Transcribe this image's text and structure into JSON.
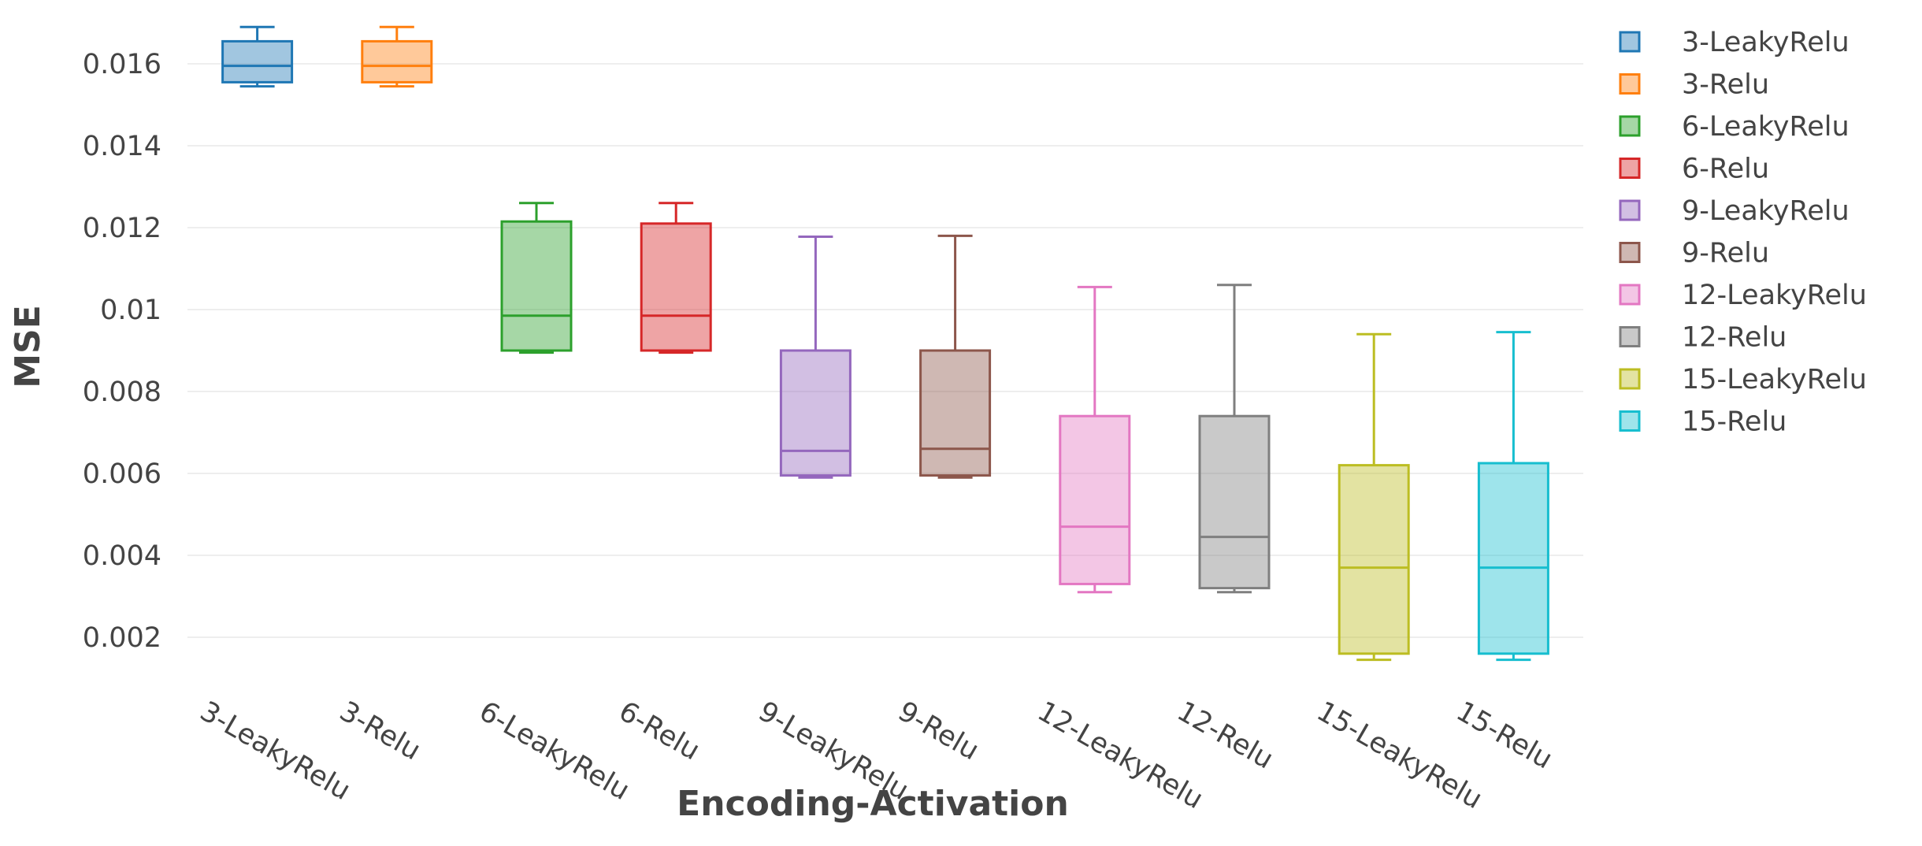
{
  "chart_data": {
    "type": "box",
    "xlabel": "Encoding-Activation",
    "ylabel": "MSE",
    "ylim": [
      0.0005,
      0.0175
    ],
    "yticks": [
      0.002,
      0.004,
      0.006,
      0.008,
      0.01,
      0.012,
      0.014,
      0.016
    ],
    "ytick_labels": [
      "0.002",
      "0.004",
      "0.006",
      "0.008",
      "0.01",
      "0.012",
      "0.014",
      "0.016"
    ],
    "grid": "horizontal",
    "legend_position": "right",
    "series": [
      {
        "name": "3-LeakyRelu",
        "color": "#1f77b4",
        "min": 0.01545,
        "q1": 0.01555,
        "median": 0.01595,
        "q3": 0.01655,
        "max": 0.0169
      },
      {
        "name": "3-Relu",
        "color": "#ff7f0e",
        "min": 0.01545,
        "q1": 0.01555,
        "median": 0.01595,
        "q3": 0.01655,
        "max": 0.0169
      },
      {
        "name": "6-LeakyRelu",
        "color": "#2ca02c",
        "min": 0.00895,
        "q1": 0.009,
        "median": 0.00985,
        "q3": 0.01215,
        "max": 0.0126
      },
      {
        "name": "6-Relu",
        "color": "#d62728",
        "min": 0.00895,
        "q1": 0.009,
        "median": 0.00985,
        "q3": 0.0121,
        "max": 0.0126
      },
      {
        "name": "9-LeakyRelu",
        "color": "#9467bd",
        "min": 0.0059,
        "q1": 0.00595,
        "median": 0.00655,
        "q3": 0.009,
        "max": 0.01178
      },
      {
        "name": "9-Relu",
        "color": "#8c564b",
        "min": 0.0059,
        "q1": 0.00595,
        "median": 0.0066,
        "q3": 0.009,
        "max": 0.0118
      },
      {
        "name": "12-LeakyRelu",
        "color": "#e377c2",
        "min": 0.0031,
        "q1": 0.0033,
        "median": 0.0047,
        "q3": 0.0074,
        "max": 0.01055
      },
      {
        "name": "12-Relu",
        "color": "#7f7f7f",
        "min": 0.0031,
        "q1": 0.0032,
        "median": 0.00445,
        "q3": 0.0074,
        "max": 0.0106
      },
      {
        "name": "15-LeakyRelu",
        "color": "#bcbd22",
        "min": 0.00145,
        "q1": 0.0016,
        "median": 0.0037,
        "q3": 0.0062,
        "max": 0.0094
      },
      {
        "name": "15-Relu",
        "color": "#17becf",
        "min": 0.00145,
        "q1": 0.0016,
        "median": 0.0037,
        "q3": 0.00625,
        "max": 0.00945
      }
    ]
  }
}
